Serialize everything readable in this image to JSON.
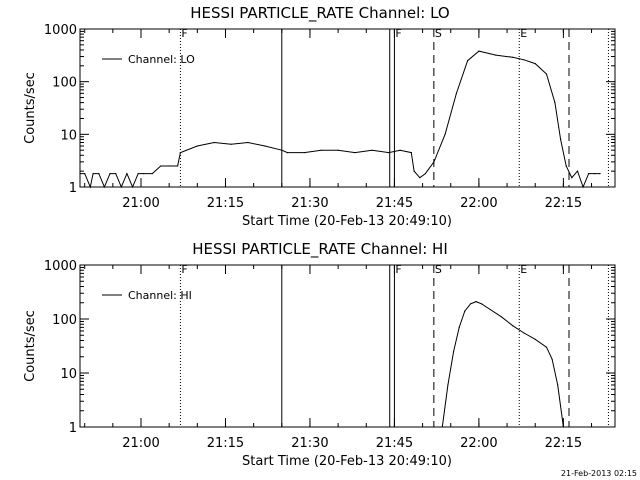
{
  "footer": {
    "timestamp": "21-Feb-2013 02:15"
  },
  "chart_data": [
    {
      "type": "line",
      "title": "HESSI PARTICLE_RATE Channel: LO",
      "xlabel": "Start Time (20-Feb-13 20:49:10)",
      "ylabel": "Counts/sec",
      "y_scale": "log",
      "ylim": [
        1,
        1000
      ],
      "y_ticks": [
        1,
        10,
        100,
        1000
      ],
      "y_tick_labels": [
        "1",
        "10",
        "100",
        "1000"
      ],
      "xlim": [
        "20:49:10",
        "22:24:10"
      ],
      "x_tick_labels": [
        "21:00",
        "21:15",
        "21:30",
        "21:45",
        "22:00",
        "22:15"
      ],
      "legend": {
        "position": "top-left",
        "entries": [
          "Channel: LO"
        ]
      },
      "series": [
        {
          "name": "Channel: LO",
          "x": [
            "20:49:10",
            "20:50:00",
            "20:51:00",
            "20:51:30",
            "20:52:30",
            "20:53:30",
            "20:54:30",
            "20:55:30",
            "20:56:30",
            "20:57:30",
            "20:58:30",
            "20:59:30",
            "21:00:30",
            "21:02:00",
            "21:03:30",
            "21:05:00",
            "21:06:30",
            "21:07:00",
            "21:10:00",
            "21:13:00",
            "21:16:00",
            "21:19:00",
            "21:22:00",
            "21:25:00",
            "21:26:00",
            "21:29:00",
            "21:32:00",
            "21:35:00",
            "21:38:00",
            "21:41:00",
            "21:44:00",
            "21:46:00",
            "21:48:00",
            "21:48:30",
            "21:49:30",
            "21:50:30",
            "21:52:00",
            "21:54:00",
            "21:56:00",
            "21:58:00",
            "22:00:00",
            "22:03:00",
            "22:06:00",
            "22:08:00",
            "22:10:00",
            "22:12:00",
            "22:13:30",
            "22:14:30",
            "22:15:30",
            "22:16:30",
            "22:17:30",
            "22:18:30",
            "22:19:30",
            "22:20:30",
            "22:21:30"
          ],
          "y": [
            1.8,
            1.8,
            1,
            1.8,
            1.8,
            1,
            1.8,
            1.8,
            1,
            1.8,
            1,
            1.8,
            1.8,
            1.8,
            2.5,
            2.5,
            2.5,
            4.5,
            6,
            7,
            6.5,
            7,
            6,
            5,
            4.5,
            4.5,
            5,
            5,
            4.5,
            5,
            4.5,
            5,
            4.5,
            2,
            1.5,
            1.8,
            3,
            10,
            60,
            250,
            380,
            320,
            290,
            260,
            220,
            140,
            40,
            8,
            2.5,
            1.5,
            2,
            1,
            1.8,
            1.8,
            1.8
          ]
        }
      ],
      "markers": [
        {
          "time": "21:07:00",
          "style": "dotted",
          "label": "F"
        },
        {
          "time": "21:25:00",
          "style": "solid",
          "label": ""
        },
        {
          "time": "21:44:10",
          "style": "solid",
          "label": ""
        },
        {
          "time": "21:45:00",
          "style": "solid",
          "label": "F"
        },
        {
          "time": "21:52:00",
          "style": "dashed",
          "label": "S"
        },
        {
          "time": "22:07:10",
          "style": "dotted",
          "label": "E"
        },
        {
          "time": "22:16:00",
          "style": "dashed",
          "label": ""
        },
        {
          "time": "22:23:00",
          "style": "dotted",
          "label": ""
        }
      ]
    },
    {
      "type": "line",
      "title": "HESSI PARTICLE_RATE Channel: HI",
      "xlabel": "Start Time (20-Feb-13 20:49:10)",
      "ylabel": "Counts/sec",
      "y_scale": "log",
      "ylim": [
        1,
        1000
      ],
      "y_ticks": [
        1,
        10,
        100,
        1000
      ],
      "y_tick_labels": [
        "1",
        "10",
        "100",
        "1000"
      ],
      "xlim": [
        "20:49:10",
        "22:24:10"
      ],
      "x_tick_labels": [
        "21:00",
        "21:15",
        "21:30",
        "21:45",
        "22:00",
        "22:15"
      ],
      "legend": {
        "position": "top-left",
        "entries": [
          "Channel: HI"
        ]
      },
      "series": [
        {
          "name": "Channel: HI",
          "x": [
            "21:53:30",
            "21:54:30",
            "21:55:30",
            "21:56:30",
            "21:57:30",
            "21:58:30",
            "21:59:30",
            "22:00:30",
            "22:02:00",
            "22:04:00",
            "22:06:00",
            "22:08:00",
            "22:10:00",
            "22:12:00",
            "22:13:00",
            "22:14:00",
            "22:15:00"
          ],
          "y": [
            1,
            6,
            25,
            70,
            140,
            190,
            210,
            190,
            150,
            110,
            75,
            55,
            42,
            30,
            18,
            6,
            1
          ]
        }
      ],
      "markers": [
        {
          "time": "21:07:00",
          "style": "dotted",
          "label": "F"
        },
        {
          "time": "21:25:00",
          "style": "solid",
          "label": ""
        },
        {
          "time": "21:44:10",
          "style": "solid",
          "label": ""
        },
        {
          "time": "21:45:00",
          "style": "solid",
          "label": "F"
        },
        {
          "time": "21:52:00",
          "style": "dashed",
          "label": "S"
        },
        {
          "time": "22:07:10",
          "style": "dotted",
          "label": "E"
        },
        {
          "time": "22:16:00",
          "style": "dashed",
          "label": ""
        },
        {
          "time": "22:23:00",
          "style": "dotted",
          "label": ""
        }
      ]
    }
  ]
}
